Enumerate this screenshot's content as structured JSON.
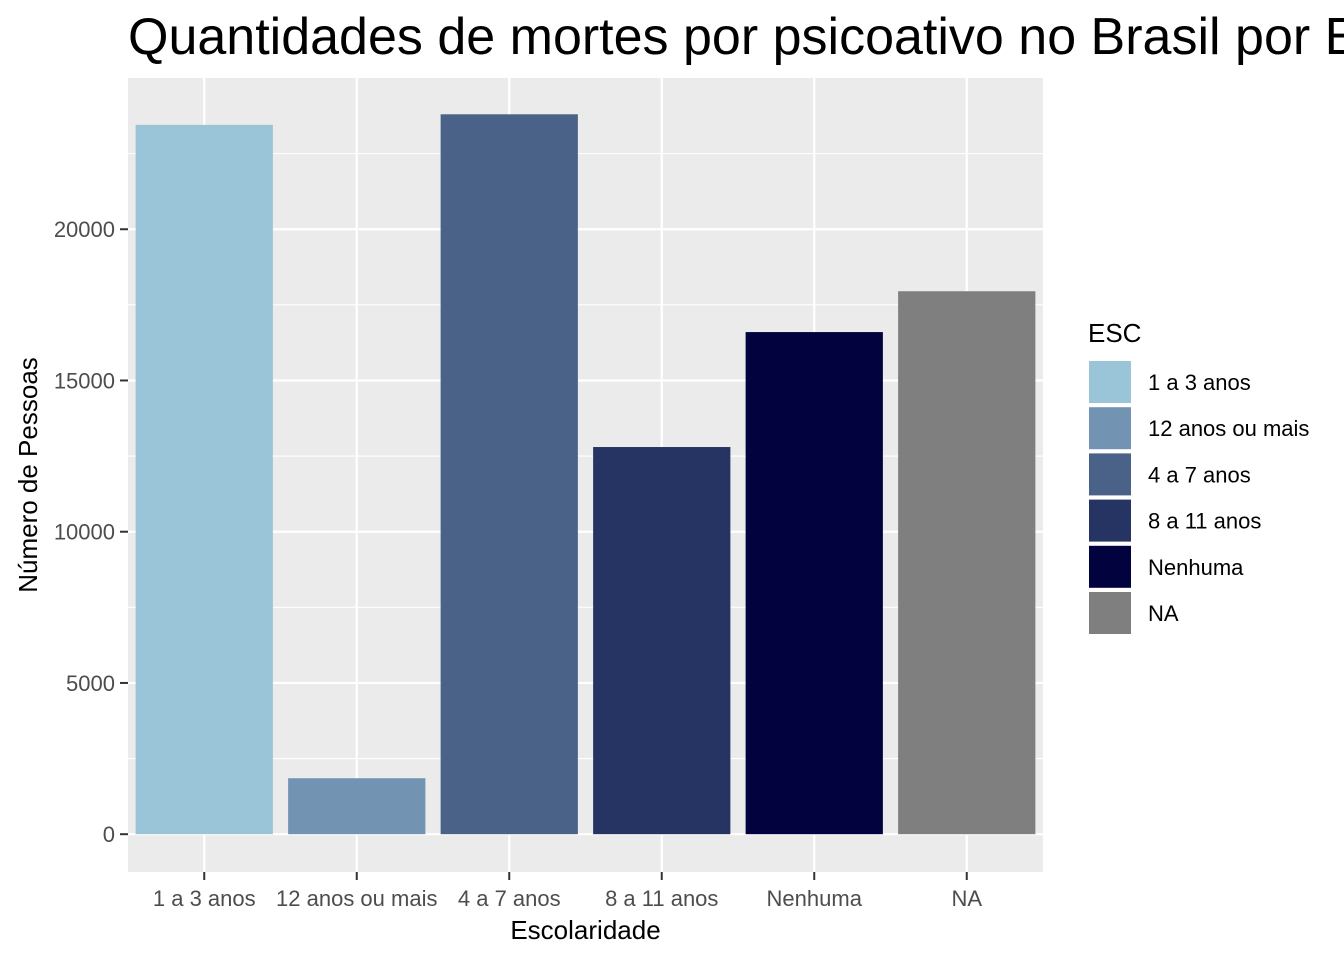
{
  "chart_data": {
    "type": "bar",
    "title": "Quantidades de mortes por psicoativo no Brasil por Escolaridade",
    "xlabel": "Escolaridade",
    "ylabel": "Número de Pessoas",
    "categories": [
      "1 a 3 anos",
      "12 anos ou mais",
      "4 a 7 anos",
      "8 a 11 anos",
      "Nenhuma",
      "NA"
    ],
    "values": [
      23450,
      1850,
      23800,
      12800,
      16600,
      17950
    ],
    "colors": [
      "#9ac5d8",
      "#7294b2",
      "#4b6288",
      "#263463",
      "#02023e",
      "#7f7f7f"
    ],
    "ylim": [
      -1250,
      25000
    ],
    "yticks": [
      0,
      5000,
      10000,
      15000,
      20000
    ],
    "grid": true,
    "legend": {
      "title": "ESC",
      "position": "right",
      "entries": [
        "1 a 3 anos",
        "12 anos ou mais",
        "4 a 7 anos",
        "8 a 11 anos",
        "Nenhuma",
        "NA"
      ]
    }
  }
}
